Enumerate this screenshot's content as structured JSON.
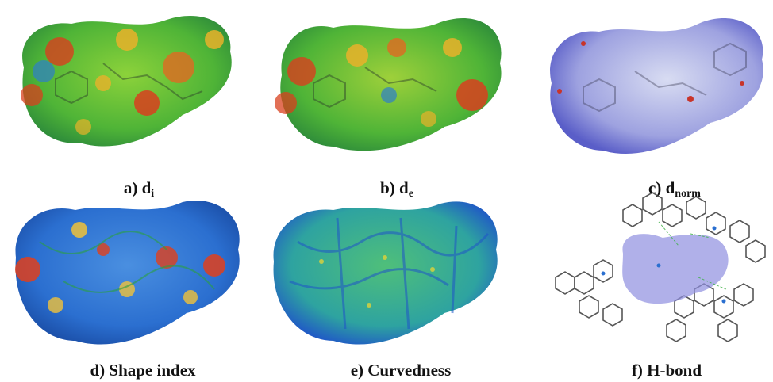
{
  "panels": [
    {
      "id": "a",
      "prefix": "a) d",
      "sub": "i",
      "kind": "di"
    },
    {
      "id": "b",
      "prefix": "b) d",
      "sub": "e",
      "kind": "de"
    },
    {
      "id": "c",
      "prefix": "c) d",
      "sub": "norm",
      "kind": "dnorm"
    },
    {
      "id": "d",
      "prefix": "d) Shape index",
      "sub": "",
      "kind": "shape"
    },
    {
      "id": "e",
      "prefix": "e) Curvedness",
      "sub": "",
      "kind": "curv"
    },
    {
      "id": "f",
      "prefix": "f) H-bond",
      "sub": "",
      "kind": "hbond"
    }
  ],
  "colors": {
    "di_base": "#5bc03a",
    "di_hot": "#d8401e",
    "di_warm": "#e9b22a",
    "di_cool": "#2e7fc9",
    "dnorm_base": "#8a8fd6",
    "dnorm_spot": "#c8342a",
    "shape_base": "#2b6fd0",
    "shape_hot": "#e0401c",
    "shape_warm": "#f0c23a",
    "curv_base": "#2ea3a0",
    "curv_edge": "#1f55c8",
    "hbond_surface": "#8f8fe0",
    "hbond_atom": "#3a3a3a",
    "hbond_n": "#2a6fd0"
  }
}
